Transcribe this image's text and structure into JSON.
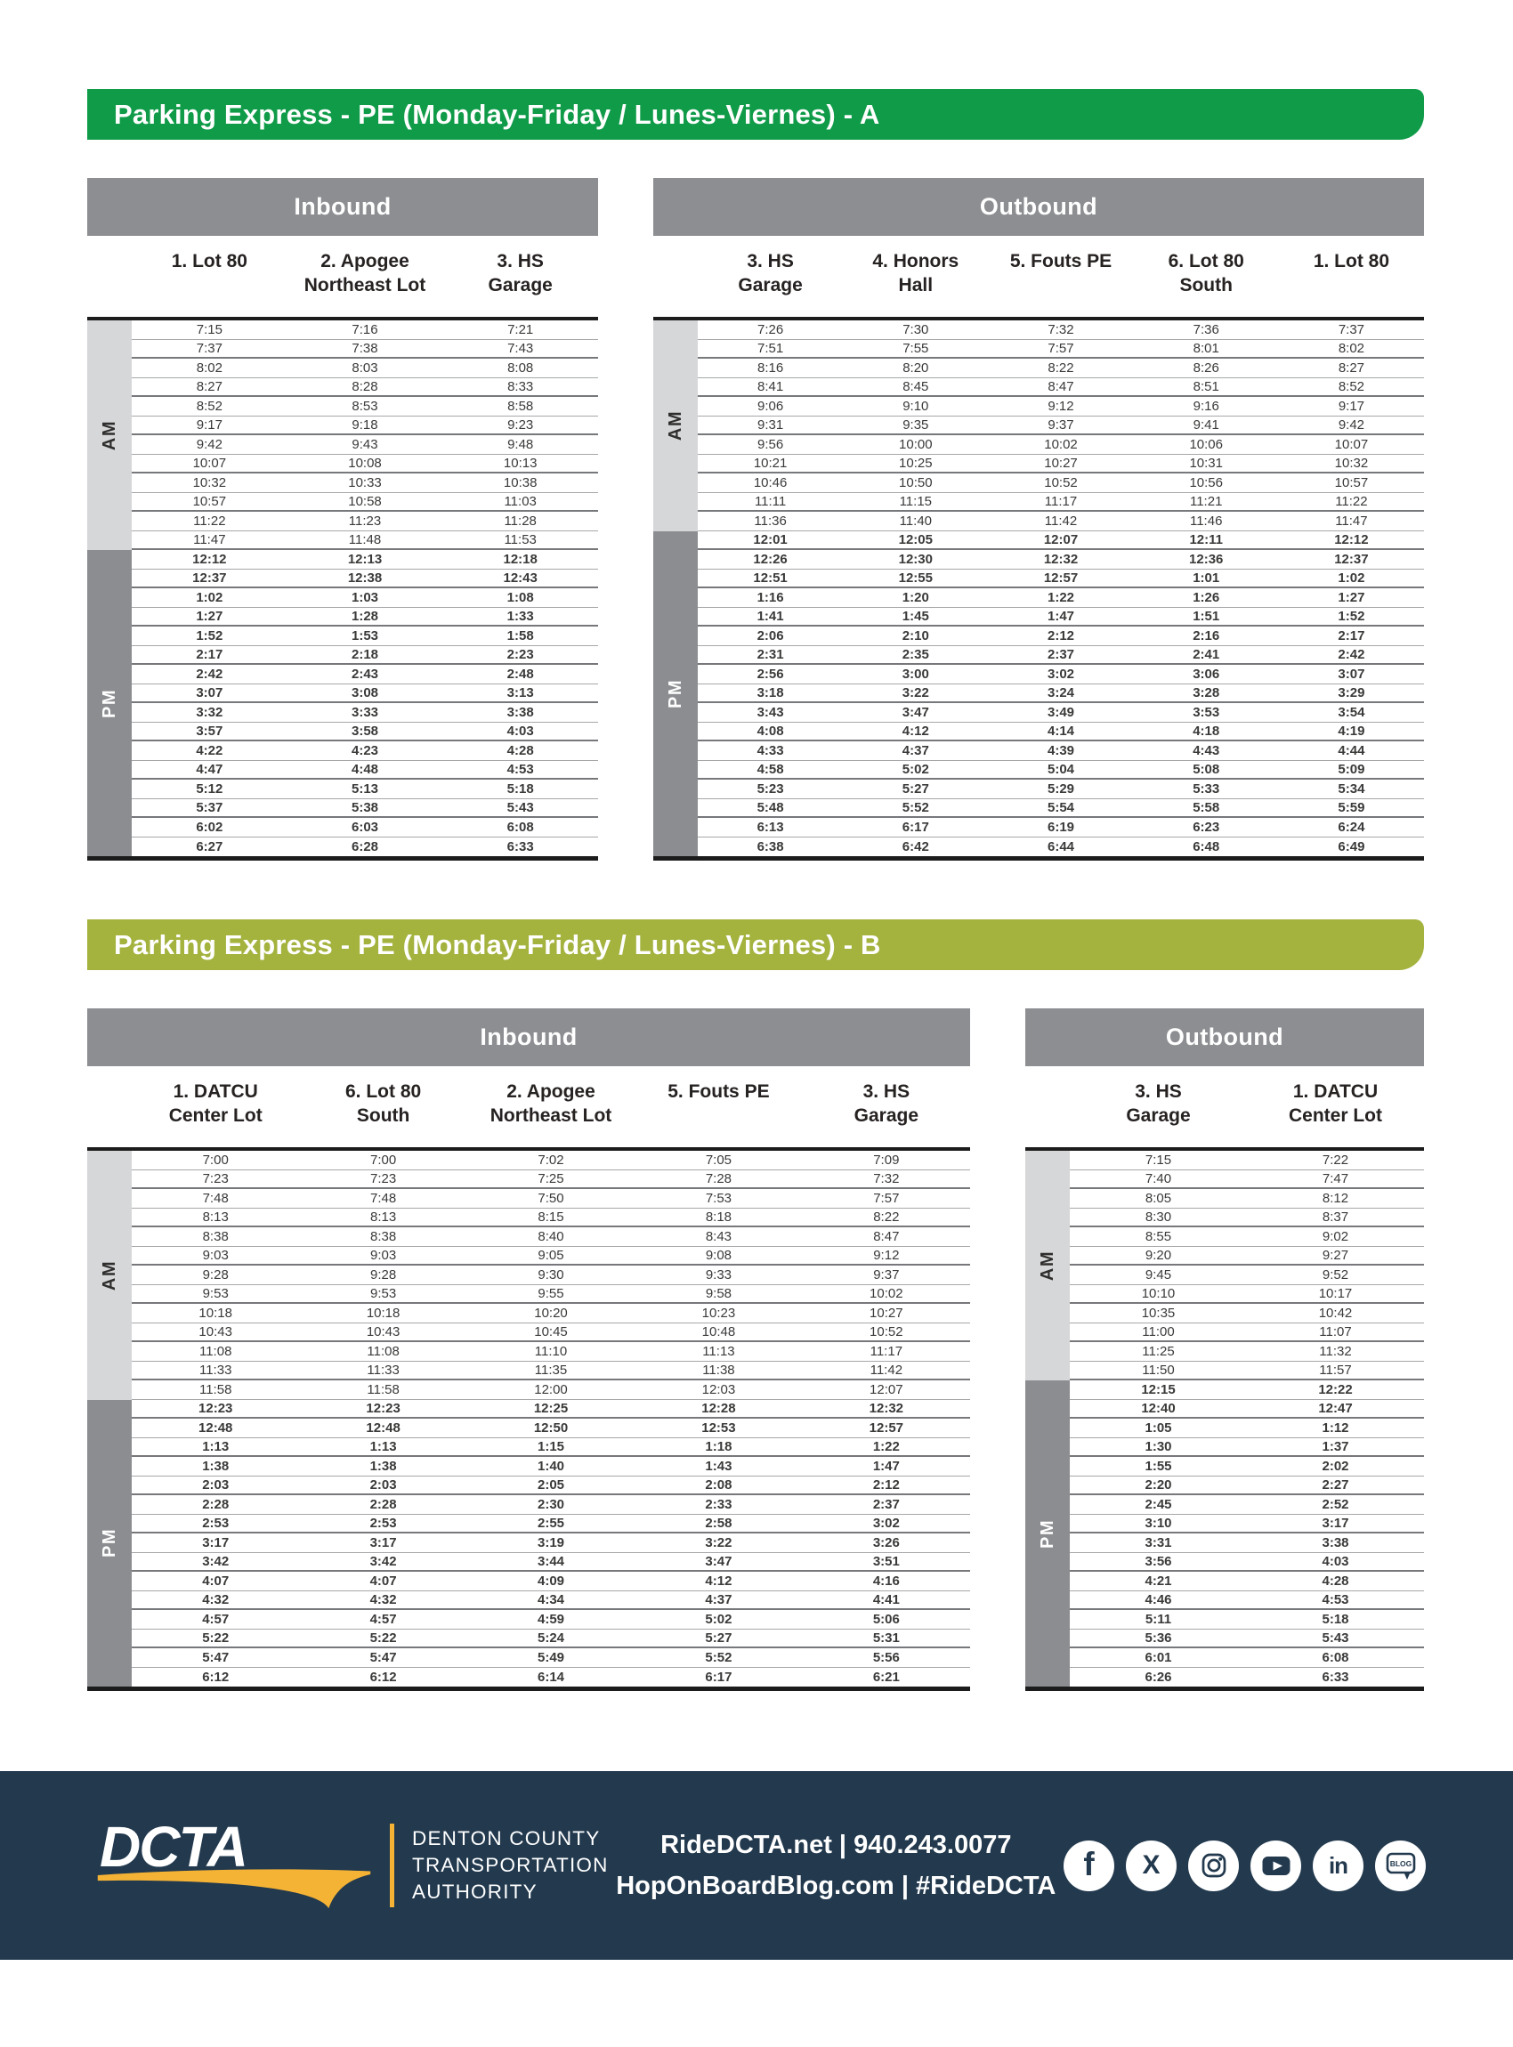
{
  "group_labels": {
    "am": "AM",
    "pm": "PM"
  },
  "colors": {
    "banner_a_green": "#0f9b48",
    "banner_b_olive": "#a4b23e",
    "section_bar_gray": "#8c8e91",
    "am_strip_gray": "#d6d7d9",
    "pm_strip_gray": "#8b8d90",
    "footer_navy": "#22394e",
    "accent_yellow": "#f5b335"
  },
  "tables": [
    {
      "title": "Parking Express - PE (Monday-Friday / Lunes-Viernes) - A",
      "title_color": "#0f9b48",
      "sections": [
        {
          "direction": "Inbound",
          "columns": [
            [
              "1. Lot 80"
            ],
            [
              "2. Apogee",
              "Northeast Lot"
            ],
            [
              "3. HS",
              "Garage"
            ]
          ],
          "am": [
            [
              "7:15",
              "7:16",
              "7:21"
            ],
            [
              "7:37",
              "7:38",
              "7:43"
            ],
            [
              "8:02",
              "8:03",
              "8:08"
            ],
            [
              "8:27",
              "8:28",
              "8:33"
            ],
            [
              "8:52",
              "8:53",
              "8:58"
            ],
            [
              "9:17",
              "9:18",
              "9:23"
            ],
            [
              "9:42",
              "9:43",
              "9:48"
            ],
            [
              "10:07",
              "10:08",
              "10:13"
            ],
            [
              "10:32",
              "10:33",
              "10:38"
            ],
            [
              "10:57",
              "10:58",
              "11:03"
            ],
            [
              "11:22",
              "11:23",
              "11:28"
            ],
            [
              "11:47",
              "11:48",
              "11:53"
            ]
          ],
          "pm": [
            [
              "12:12",
              "12:13",
              "12:18"
            ],
            [
              "12:37",
              "12:38",
              "12:43"
            ],
            [
              "1:02",
              "1:03",
              "1:08"
            ],
            [
              "1:27",
              "1:28",
              "1:33"
            ],
            [
              "1:52",
              "1:53",
              "1:58"
            ],
            [
              "2:17",
              "2:18",
              "2:23"
            ],
            [
              "2:42",
              "2:43",
              "2:48"
            ],
            [
              "3:07",
              "3:08",
              "3:13"
            ],
            [
              "3:32",
              "3:33",
              "3:38"
            ],
            [
              "3:57",
              "3:58",
              "4:03"
            ],
            [
              "4:22",
              "4:23",
              "4:28"
            ],
            [
              "4:47",
              "4:48",
              "4:53"
            ],
            [
              "5:12",
              "5:13",
              "5:18"
            ],
            [
              "5:37",
              "5:38",
              "5:43"
            ],
            [
              "6:02",
              "6:03",
              "6:08"
            ],
            [
              "6:27",
              "6:28",
              "6:33"
            ]
          ]
        },
        {
          "direction": "Outbound",
          "columns": [
            [
              "3. HS",
              "Garage"
            ],
            [
              "4. Honors",
              "Hall"
            ],
            [
              "5. Fouts PE"
            ],
            [
              "6. Lot 80",
              "South"
            ],
            [
              "1. Lot 80"
            ]
          ],
          "am": [
            [
              "7:26",
              "7:30",
              "7:32",
              "7:36",
              "7:37"
            ],
            [
              "7:51",
              "7:55",
              "7:57",
              "8:01",
              "8:02"
            ],
            [
              "8:16",
              "8:20",
              "8:22",
              "8:26",
              "8:27"
            ],
            [
              "8:41",
              "8:45",
              "8:47",
              "8:51",
              "8:52"
            ],
            [
              "9:06",
              "9:10",
              "9:12",
              "9:16",
              "9:17"
            ],
            [
              "9:31",
              "9:35",
              "9:37",
              "9:41",
              "9:42"
            ],
            [
              "9:56",
              "10:00",
              "10:02",
              "10:06",
              "10:07"
            ],
            [
              "10:21",
              "10:25",
              "10:27",
              "10:31",
              "10:32"
            ],
            [
              "10:46",
              "10:50",
              "10:52",
              "10:56",
              "10:57"
            ],
            [
              "11:11",
              "11:15",
              "11:17",
              "11:21",
              "11:22"
            ],
            [
              "11:36",
              "11:40",
              "11:42",
              "11:46",
              "11:47"
            ]
          ],
          "pm": [
            [
              "12:01",
              "12:05",
              "12:07",
              "12:11",
              "12:12"
            ],
            [
              "12:26",
              "12:30",
              "12:32",
              "12:36",
              "12:37"
            ],
            [
              "12:51",
              "12:55",
              "12:57",
              "1:01",
              "1:02"
            ],
            [
              "1:16",
              "1:20",
              "1:22",
              "1:26",
              "1:27"
            ],
            [
              "1:41",
              "1:45",
              "1:47",
              "1:51",
              "1:52"
            ],
            [
              "2:06",
              "2:10",
              "2:12",
              "2:16",
              "2:17"
            ],
            [
              "2:31",
              "2:35",
              "2:37",
              "2:41",
              "2:42"
            ],
            [
              "2:56",
              "3:00",
              "3:02",
              "3:06",
              "3:07"
            ],
            [
              "3:18",
              "3:22",
              "3:24",
              "3:28",
              "3:29"
            ],
            [
              "3:43",
              "3:47",
              "3:49",
              "3:53",
              "3:54"
            ],
            [
              "4:08",
              "4:12",
              "4:14",
              "4:18",
              "4:19"
            ],
            [
              "4:33",
              "4:37",
              "4:39",
              "4:43",
              "4:44"
            ],
            [
              "4:58",
              "5:02",
              "5:04",
              "5:08",
              "5:09"
            ],
            [
              "5:23",
              "5:27",
              "5:29",
              "5:33",
              "5:34"
            ],
            [
              "5:48",
              "5:52",
              "5:54",
              "5:58",
              "5:59"
            ],
            [
              "6:13",
              "6:17",
              "6:19",
              "6:23",
              "6:24"
            ],
            [
              "6:38",
              "6:42",
              "6:44",
              "6:48",
              "6:49"
            ]
          ]
        }
      ]
    },
    {
      "title": "Parking Express - PE (Monday-Friday / Lunes-Viernes) - B",
      "title_color": "#a4b23e",
      "sections": [
        {
          "direction": "Inbound",
          "columns": [
            [
              "1. DATCU",
              "Center Lot"
            ],
            [
              "6. Lot 80",
              "South"
            ],
            [
              "2. Apogee",
              "Northeast Lot"
            ],
            [
              "5. Fouts PE"
            ],
            [
              "3. HS",
              "Garage"
            ]
          ],
          "am": [
            [
              "7:00",
              "7:00",
              "7:02",
              "7:05",
              "7:09"
            ],
            [
              "7:23",
              "7:23",
              "7:25",
              "7:28",
              "7:32"
            ],
            [
              "7:48",
              "7:48",
              "7:50",
              "7:53",
              "7:57"
            ],
            [
              "8:13",
              "8:13",
              "8:15",
              "8:18",
              "8:22"
            ],
            [
              "8:38",
              "8:38",
              "8:40",
              "8:43",
              "8:47"
            ],
            [
              "9:03",
              "9:03",
              "9:05",
              "9:08",
              "9:12"
            ],
            [
              "9:28",
              "9:28",
              "9:30",
              "9:33",
              "9:37"
            ],
            [
              "9:53",
              "9:53",
              "9:55",
              "9:58",
              "10:02"
            ],
            [
              "10:18",
              "10:18",
              "10:20",
              "10:23",
              "10:27"
            ],
            [
              "10:43",
              "10:43",
              "10:45",
              "10:48",
              "10:52"
            ],
            [
              "11:08",
              "11:08",
              "11:10",
              "11:13",
              "11:17"
            ],
            [
              "11:33",
              "11:33",
              "11:35",
              "11:38",
              "11:42"
            ],
            [
              "11:58",
              "11:58",
              "12:00",
              "12:03",
              "12:07"
            ]
          ],
          "pm": [
            [
              "12:23",
              "12:23",
              "12:25",
              "12:28",
              "12:32"
            ],
            [
              "12:48",
              "12:48",
              "12:50",
              "12:53",
              "12:57"
            ],
            [
              "1:13",
              "1:13",
              "1:15",
              "1:18",
              "1:22"
            ],
            [
              "1:38",
              "1:38",
              "1:40",
              "1:43",
              "1:47"
            ],
            [
              "2:03",
              "2:03",
              "2:05",
              "2:08",
              "2:12"
            ],
            [
              "2:28",
              "2:28",
              "2:30",
              "2:33",
              "2:37"
            ],
            [
              "2:53",
              "2:53",
              "2:55",
              "2:58",
              "3:02"
            ],
            [
              "3:17",
              "3:17",
              "3:19",
              "3:22",
              "3:26"
            ],
            [
              "3:42",
              "3:42",
              "3:44",
              "3:47",
              "3:51"
            ],
            [
              "4:07",
              "4:07",
              "4:09",
              "4:12",
              "4:16"
            ],
            [
              "4:32",
              "4:32",
              "4:34",
              "4:37",
              "4:41"
            ],
            [
              "4:57",
              "4:57",
              "4:59",
              "5:02",
              "5:06"
            ],
            [
              "5:22",
              "5:22",
              "5:24",
              "5:27",
              "5:31"
            ],
            [
              "5:47",
              "5:47",
              "5:49",
              "5:52",
              "5:56"
            ],
            [
              "6:12",
              "6:12",
              "6:14",
              "6:17",
              "6:21"
            ]
          ]
        },
        {
          "direction": "Outbound",
          "columns": [
            [
              "3. HS",
              "Garage"
            ],
            [
              "1. DATCU",
              "Center Lot"
            ]
          ],
          "am": [
            [
              "7:15",
              "7:22"
            ],
            [
              "7:40",
              "7:47"
            ],
            [
              "8:05",
              "8:12"
            ],
            [
              "8:30",
              "8:37"
            ],
            [
              "8:55",
              "9:02"
            ],
            [
              "9:20",
              "9:27"
            ],
            [
              "9:45",
              "9:52"
            ],
            [
              "10:10",
              "10:17"
            ],
            [
              "10:35",
              "10:42"
            ],
            [
              "11:00",
              "11:07"
            ],
            [
              "11:25",
              "11:32"
            ],
            [
              "11:50",
              "11:57"
            ]
          ],
          "pm": [
            [
              "12:15",
              "12:22"
            ],
            [
              "12:40",
              "12:47"
            ],
            [
              "1:05",
              "1:12"
            ],
            [
              "1:30",
              "1:37"
            ],
            [
              "1:55",
              "2:02"
            ],
            [
              "2:20",
              "2:27"
            ],
            [
              "2:45",
              "2:52"
            ],
            [
              "3:10",
              "3:17"
            ],
            [
              "3:31",
              "3:38"
            ],
            [
              "3:56",
              "4:03"
            ],
            [
              "4:21",
              "4:28"
            ],
            [
              "4:46",
              "4:53"
            ],
            [
              "5:11",
              "5:18"
            ],
            [
              "5:36",
              "5:43"
            ],
            [
              "6:01",
              "6:08"
            ],
            [
              "6:26",
              "6:33"
            ]
          ]
        }
      ]
    }
  ],
  "footer": {
    "logo": "DCTA",
    "org_lines": [
      "DENTON COUNTY",
      "TRANSPORTATION",
      "AUTHORITY"
    ],
    "line1": "RideDCTA.net  |  940.243.0077",
    "line2": "HopOnBoardBlog.com  |  #RideDCTA",
    "social": [
      {
        "icon": "facebook-icon",
        "kind": "letter",
        "glyph": "f"
      },
      {
        "icon": "x-twitter-icon",
        "kind": "letter",
        "glyph": "X"
      },
      {
        "icon": "instagram-icon",
        "kind": "instagram"
      },
      {
        "icon": "youtube-icon",
        "kind": "youtube"
      },
      {
        "icon": "linkedin-icon",
        "kind": "letter",
        "glyph": "in"
      },
      {
        "icon": "blog-icon",
        "kind": "blog",
        "label": "BLOG"
      }
    ]
  }
}
